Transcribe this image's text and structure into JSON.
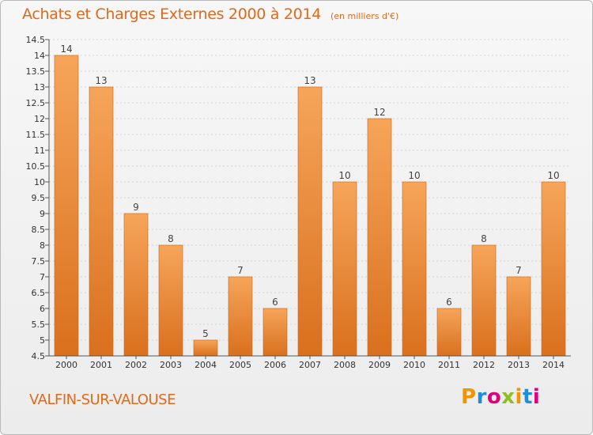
{
  "header": {
    "title": "Achats et Charges Externes 2000 à 2014",
    "subtitle": "(en milliers d'€)"
  },
  "footer": {
    "commune": "VALFIN-SUR-VALOUSE",
    "logo_letters": [
      "P",
      "r",
      "o",
      "x",
      "i",
      "t",
      "i"
    ],
    "logo_colors": [
      "#f29400",
      "#1d8fd6",
      "#e2007a",
      "#8dbf1e",
      "#f29400",
      "#1d8fd6",
      "#e2007a"
    ]
  },
  "colors": {
    "bar_light": "#f6a55a",
    "bar_dark": "#d9701d",
    "accent": "#e06a1c"
  },
  "chart_data": {
    "type": "bar",
    "title": "Achats et Charges Externes 2000 à 2014",
    "subtitle": "(en milliers d'€)",
    "xlabel": "",
    "ylabel": "",
    "categories": [
      "2000",
      "2001",
      "2002",
      "2003",
      "2004",
      "2005",
      "2006",
      "2007",
      "2008",
      "2009",
      "2010",
      "2011",
      "2012",
      "2013",
      "2014"
    ],
    "values": [
      14,
      13,
      9,
      8,
      5,
      7,
      6,
      13,
      10,
      12,
      10,
      6,
      8,
      7,
      10
    ],
    "ylim": [
      4.5,
      14.5
    ],
    "yticks": [
      "4.5",
      "5",
      "5.5",
      "6",
      "6.5",
      "7",
      "7.5",
      "8",
      "8.5",
      "9",
      "9.5",
      "10",
      "10.5",
      "11",
      "11.5",
      "12",
      "12.5",
      "13",
      "13.5",
      "14",
      "14.5"
    ],
    "grid": true,
    "legend": "none"
  }
}
